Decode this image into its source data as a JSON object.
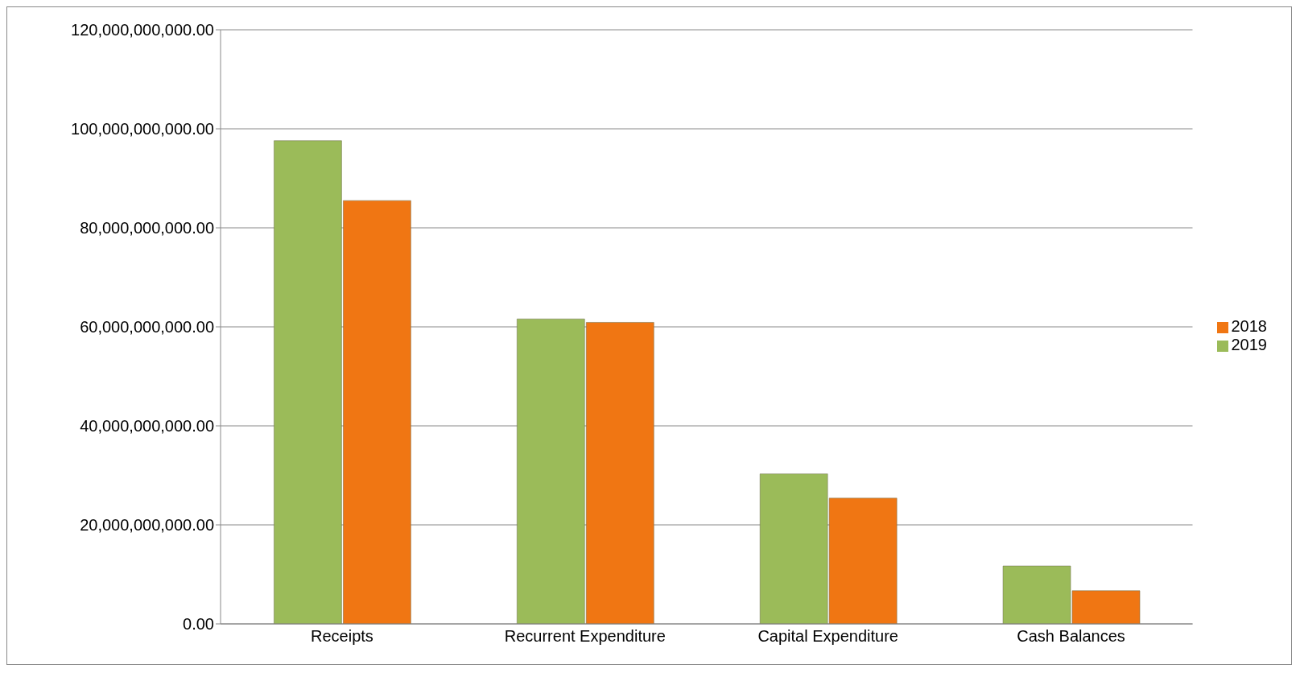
{
  "chart_data": {
    "type": "bar",
    "categories": [
      "Receipts",
      "Recurrent Expenditure",
      "Capital Expenditure",
      "Cash Balances"
    ],
    "series": [
      {
        "name": "2019",
        "color": "#9bbb59",
        "values": [
          97600000000,
          61600000000,
          30300000000,
          11700000000
        ]
      },
      {
        "name": "2018",
        "color": "#f07613",
        "values": [
          85500000000,
          60900000000,
          25400000000,
          6700000000
        ]
      }
    ],
    "ylim": [
      0,
      120000000000
    ],
    "yticks": [
      {
        "value": 0,
        "label": "0.00"
      },
      {
        "value": 20000000000,
        "label": "20,000,000,000.00"
      },
      {
        "value": 40000000000,
        "label": "40,000,000,000.00"
      },
      {
        "value": 60000000000,
        "label": "60,000,000,000.00"
      },
      {
        "value": 80000000000,
        "label": "80,000,000,000.00"
      },
      {
        "value": 100000000000,
        "label": "100,000,000,000.00"
      },
      {
        "value": 120000000000,
        "label": "120,000,000,000.00"
      }
    ],
    "grid": "y",
    "legend": "right"
  }
}
